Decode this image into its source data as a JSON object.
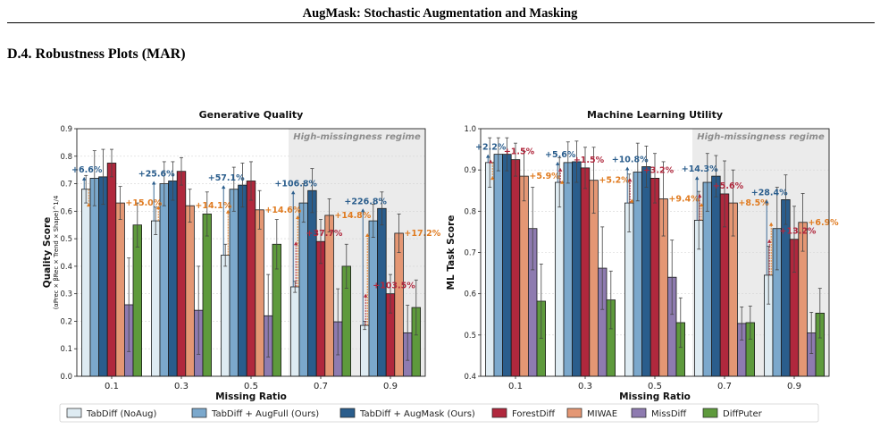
{
  "header": {
    "running_title": "AugMask: Stochastic Augmentation and Masking"
  },
  "section": {
    "heading": "D.4. Robustness Plots (MAR)"
  },
  "legend": [
    {
      "name": "TabDiff (NoAug)",
      "color": "#deebf2"
    },
    {
      "name": "TabDiff + AugFull (Ours)",
      "color": "#7ba8cc"
    },
    {
      "name": "TabDiff + AugMask (Ours)",
      "color": "#2a5d8c"
    },
    {
      "name": "ForestDiff",
      "color": "#b0283d"
    },
    {
      "name": "MIWAE",
      "color": "#e49774"
    },
    {
      "name": "MissDiff",
      "color": "#8e7bb0"
    },
    {
      "name": "DiffPuter",
      "color": "#5e9a3c"
    }
  ],
  "colors": {
    "annotation_blue": "#2a5d8c",
    "annotation_red": "#b0283d",
    "annotation_orange": "#e07b20",
    "regime_shade": "#ebebeb"
  },
  "chart_data": [
    {
      "type": "bar",
      "title": "Generative Quality",
      "ylabel": "Quality Score",
      "ylabel_sub": "(αPrec × βRec × Trend × Shape)^1/4",
      "xlabel": "Missing Ratio",
      "categories": [
        "0.1",
        "0.3",
        "0.5",
        "0.7",
        "0.9"
      ],
      "ylim": [
        0.0,
        0.9
      ],
      "yticks": [
        "0.0",
        "0.1",
        "0.2",
        "0.3",
        "0.4",
        "0.5",
        "0.6",
        "0.7",
        "0.8",
        "0.9"
      ],
      "grid": true,
      "regime_label": "High-missingness regime",
      "regime_categories": [
        "0.7",
        "0.9"
      ],
      "series": [
        {
          "name": "TabDiff (NoAug)",
          "values": [
            0.68,
            0.565,
            0.44,
            0.325,
            0.185
          ],
          "err": [
            0.05,
            0.05,
            0.04,
            0.02,
            0.015
          ]
        },
        {
          "name": "TabDiff + AugFull (Ours)",
          "values": [
            0.72,
            0.7,
            0.68,
            0.63,
            0.565
          ],
          "err": [
            0.1,
            0.08,
            0.08,
            0.07,
            0.06
          ]
        },
        {
          "name": "TabDiff + AugMask (Ours)",
          "values": [
            0.725,
            0.71,
            0.695,
            0.675,
            0.61
          ],
          "err": [
            0.1,
            0.07,
            0.08,
            0.08,
            0.06
          ]
        },
        {
          "name": "ForestDiff",
          "values": [
            0.775,
            0.745,
            0.71,
            0.49,
            0.3
          ],
          "err": [
            0.05,
            0.05,
            0.07,
            0.08,
            0.07
          ]
        },
        {
          "name": "MIWAE",
          "values": [
            0.63,
            0.62,
            0.605,
            0.585,
            0.52
          ],
          "err": [
            0.06,
            0.06,
            0.07,
            0.06,
            0.07
          ]
        },
        {
          "name": "MissDiff",
          "values": [
            0.26,
            0.24,
            0.22,
            0.198,
            0.158
          ],
          "err": [
            0.17,
            0.16,
            0.15,
            0.12,
            0.1
          ]
        },
        {
          "name": "DiffPuter",
          "values": [
            0.55,
            0.59,
            0.48,
            0.4,
            0.25
          ],
          "err": [
            0.08,
            0.08,
            0.09,
            0.08,
            0.1
          ]
        }
      ],
      "annotations": [
        {
          "category": "0.1",
          "gain_blue": "+6.6%",
          "gain_red": "",
          "gain_orange": "+15.0%"
        },
        {
          "category": "0.3",
          "gain_blue": "+25.6%",
          "gain_red": "",
          "gain_orange": "+14.1%"
        },
        {
          "category": "0.5",
          "gain_blue": "+57.1%",
          "gain_red": "",
          "gain_orange": "+14.6%"
        },
        {
          "category": "0.7",
          "gain_blue": "+106.8%",
          "gain_red": "+37.7%",
          "gain_orange": "+14.8%"
        },
        {
          "category": "0.9",
          "gain_blue": "+226.8%",
          "gain_red": "+103.5%",
          "gain_orange": "+17.2%"
        }
      ]
    },
    {
      "type": "bar",
      "title": "Machine Learning Utility",
      "ylabel": "ML Task Score",
      "ylabel_sub": "",
      "xlabel": "Missing Ratio",
      "categories": [
        "0.1",
        "0.3",
        "0.5",
        "0.7",
        "0.9"
      ],
      "ylim": [
        0.4,
        1.0
      ],
      "yticks": [
        "0.4",
        "0.5",
        "0.6",
        "0.7",
        "0.8",
        "0.9",
        "1.0"
      ],
      "grid": true,
      "regime_label": "High-missingness regime",
      "regime_categories": [
        "0.7",
        "0.9"
      ],
      "series": [
        {
          "name": "TabDiff (NoAug)",
          "values": [
            0.918,
            0.87,
            0.82,
            0.778,
            0.645
          ],
          "err": [
            0.06,
            0.06,
            0.07,
            0.07,
            0.07
          ]
        },
        {
          "name": "TabDiff + AugFull (Ours)",
          "values": [
            0.938,
            0.918,
            0.895,
            0.87,
            0.758
          ],
          "err": [
            0.04,
            0.05,
            0.07,
            0.07,
            0.1
          ]
        },
        {
          "name": "TabDiff + AugMask (Ours)",
          "values": [
            0.938,
            0.92,
            0.908,
            0.885,
            0.828
          ],
          "err": [
            0.04,
            0.05,
            0.05,
            0.05,
            0.06
          ]
        },
        {
          "name": "ForestDiff",
          "values": [
            0.925,
            0.905,
            0.88,
            0.842,
            0.732
          ],
          "err": [
            0.04,
            0.05,
            0.06,
            0.08,
            0.08
          ]
        },
        {
          "name": "MIWAE",
          "values": [
            0.885,
            0.875,
            0.83,
            0.82,
            0.773
          ],
          "err": [
            0.06,
            0.08,
            0.09,
            0.08,
            0.07
          ]
        },
        {
          "name": "MissDiff",
          "values": [
            0.758,
            0.662,
            0.64,
            0.528,
            0.505
          ],
          "err": [
            0.1,
            0.1,
            0.09,
            0.04,
            0.05
          ]
        },
        {
          "name": "DiffPuter",
          "values": [
            0.582,
            0.585,
            0.53,
            0.53,
            0.553
          ],
          "err": [
            0.09,
            0.07,
            0.06,
            0.04,
            0.06
          ]
        }
      ],
      "annotations": [
        {
          "category": "0.1",
          "gain_blue": "+2.2%",
          "gain_red": "+1.5%",
          "gain_orange": "+5.9%"
        },
        {
          "category": "0.3",
          "gain_blue": "+5.6%",
          "gain_red": "+1.5%",
          "gain_orange": "+5.2%"
        },
        {
          "category": "0.5",
          "gain_blue": "+10.8%",
          "gain_red": "+3.2%",
          "gain_orange": "+9.4%"
        },
        {
          "category": "0.7",
          "gain_blue": "+14.3%",
          "gain_red": "+5.6%",
          "gain_orange": "+8.5%"
        },
        {
          "category": "0.9",
          "gain_blue": "+28.4%",
          "gain_red": "+13.2%",
          "gain_orange": "+6.9%"
        }
      ]
    }
  ]
}
